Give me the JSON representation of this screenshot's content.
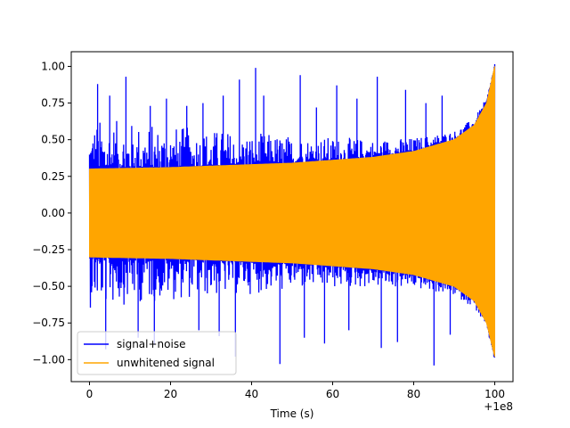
{
  "chart_data": {
    "type": "line",
    "title": "",
    "xlabel": "Time (s)",
    "ylabel": "",
    "x_offset_label": "+1e8",
    "xlim": [
      -4.5,
      104.5
    ],
    "ylim": [
      -1.15,
      1.1
    ],
    "x_ticks": [
      0,
      20,
      40,
      60,
      80,
      100
    ],
    "x_tick_labels": [
      "0",
      "20",
      "40",
      "60",
      "80",
      "100"
    ],
    "y_ticks": [
      -1.0,
      -0.75,
      -0.5,
      -0.25,
      0.0,
      0.25,
      0.5,
      0.75,
      1.0
    ],
    "y_tick_labels": [
      "−1.00",
      "−0.75",
      "−0.50",
      "−0.25",
      "0.00",
      "0.25",
      "0.50",
      "0.75",
      "1.00"
    ],
    "grid": false,
    "legend_position": "lower-left",
    "series": [
      {
        "name": "signal+noise",
        "color": "#0000ff",
        "x_range": [
          0,
          100
        ],
        "envelope": {
          "t": [
            0,
            10,
            20,
            30,
            40,
            50,
            60,
            70,
            80,
            90,
            95,
            98,
            100
          ],
          "upper": [
            0.3,
            0.305,
            0.31,
            0.32,
            0.33,
            0.34,
            0.36,
            0.38,
            0.42,
            0.5,
            0.6,
            0.75,
            1.0
          ],
          "lower": [
            -0.3,
            -0.305,
            -0.31,
            -0.32,
            -0.33,
            -0.34,
            -0.36,
            -0.38,
            -0.42,
            -0.5,
            -0.6,
            -0.75,
            -0.98
          ]
        },
        "noise_spikes": [
          {
            "t": 2,
            "y": 0.88
          },
          {
            "t": 5,
            "y": 0.8
          },
          {
            "t": 9,
            "y": 0.93
          },
          {
            "t": 15,
            "y": 0.73
          },
          {
            "t": 19,
            "y": 0.78
          },
          {
            "t": 24,
            "y": 0.73
          },
          {
            "t": 28,
            "y": 0.75
          },
          {
            "t": 33,
            "y": 0.8
          },
          {
            "t": 37,
            "y": 0.91
          },
          {
            "t": 41,
            "y": 0.99
          },
          {
            "t": 43,
            "y": 0.8
          },
          {
            "t": 52,
            "y": 0.94
          },
          {
            "t": 56,
            "y": 0.72
          },
          {
            "t": 61,
            "y": 0.87
          },
          {
            "t": 66,
            "y": 0.78
          },
          {
            "t": 71,
            "y": 0.93
          },
          {
            "t": 78,
            "y": 0.84
          },
          {
            "t": 83,
            "y": 0.75
          },
          {
            "t": 87,
            "y": 0.8
          },
          {
            "t": 4,
            "y": -0.93
          },
          {
            "t": 12,
            "y": -0.85
          },
          {
            "t": 16,
            "y": -0.9
          },
          {
            "t": 27,
            "y": -0.8
          },
          {
            "t": 32,
            "y": -0.84
          },
          {
            "t": 36,
            "y": -0.98
          },
          {
            "t": 47,
            "y": -1.03
          },
          {
            "t": 53,
            "y": -0.85
          },
          {
            "t": 58,
            "y": -0.89
          },
          {
            "t": 64,
            "y": -0.8
          },
          {
            "t": 72,
            "y": -0.92
          },
          {
            "t": 76,
            "y": -0.88
          },
          {
            "t": 85,
            "y": -1.04
          },
          {
            "t": 89,
            "y": -0.83
          }
        ]
      },
      {
        "name": "unwhitened signal",
        "color": "#ffa500",
        "x_range": [
          0,
          100
        ],
        "envelope": {
          "t": [
            0,
            10,
            20,
            30,
            40,
            50,
            60,
            70,
            80,
            90,
            95,
            98,
            100
          ],
          "upper": [
            0.3,
            0.305,
            0.31,
            0.32,
            0.33,
            0.34,
            0.36,
            0.38,
            0.42,
            0.5,
            0.6,
            0.75,
            1.0
          ],
          "lower": [
            -0.3,
            -0.305,
            -0.31,
            -0.32,
            -0.33,
            -0.34,
            -0.36,
            -0.38,
            -0.42,
            -0.5,
            -0.6,
            -0.75,
            -0.98
          ]
        }
      }
    ]
  }
}
